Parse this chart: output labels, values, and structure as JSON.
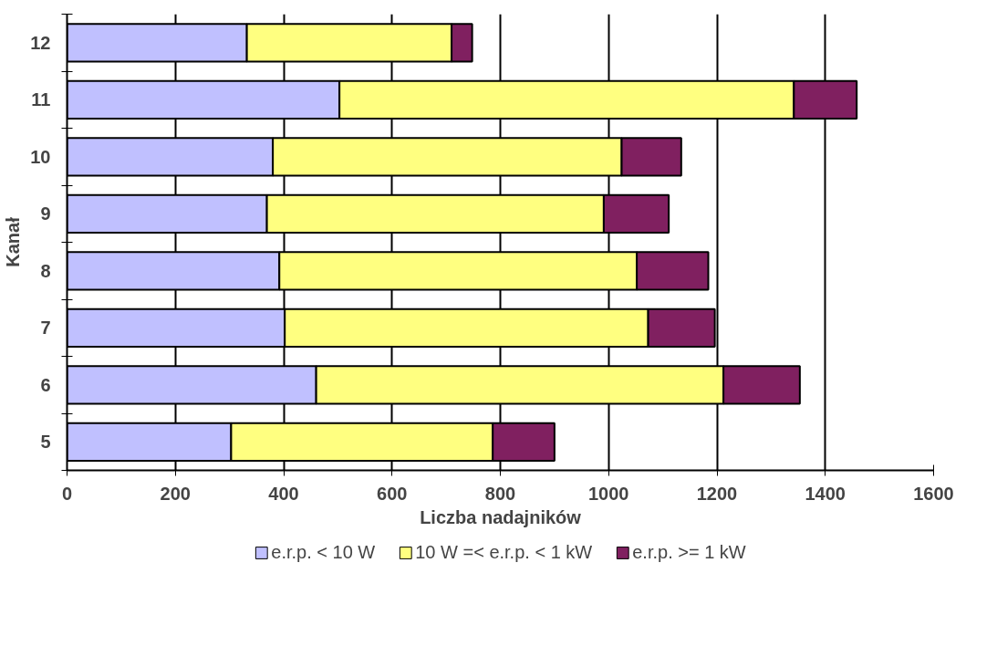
{
  "chart_data": {
    "type": "bar",
    "orientation": "horizontal",
    "stacked": true,
    "xlabel": "Liczba nadajników",
    "ylabel": "Kanał",
    "categories": [
      "12",
      "11",
      "10",
      "9",
      "8",
      "7",
      "6",
      "5"
    ],
    "series": [
      {
        "name": "e.r.p. < 10 W",
        "color": "#c0c0ff",
        "values": [
          332,
          503,
          380,
          369,
          392,
          402,
          460,
          303
        ]
      },
      {
        "name": "10 W =< e.r.p. < 1 kW",
        "color": "#ffff80",
        "values": [
          378,
          839,
          644,
          622,
          660,
          671,
          752,
          483
        ]
      },
      {
        "name": "e.r.p. >= 1 kW",
        "color": "#802060",
        "values": [
          38,
          116,
          110,
          120,
          132,
          123,
          141,
          114
        ]
      }
    ],
    "xlim": [
      0,
      1600
    ],
    "xticks": [
      0,
      200,
      400,
      600,
      800,
      1000,
      1200,
      1400,
      1600
    ],
    "grid": "x",
    "legend": "bottom"
  }
}
